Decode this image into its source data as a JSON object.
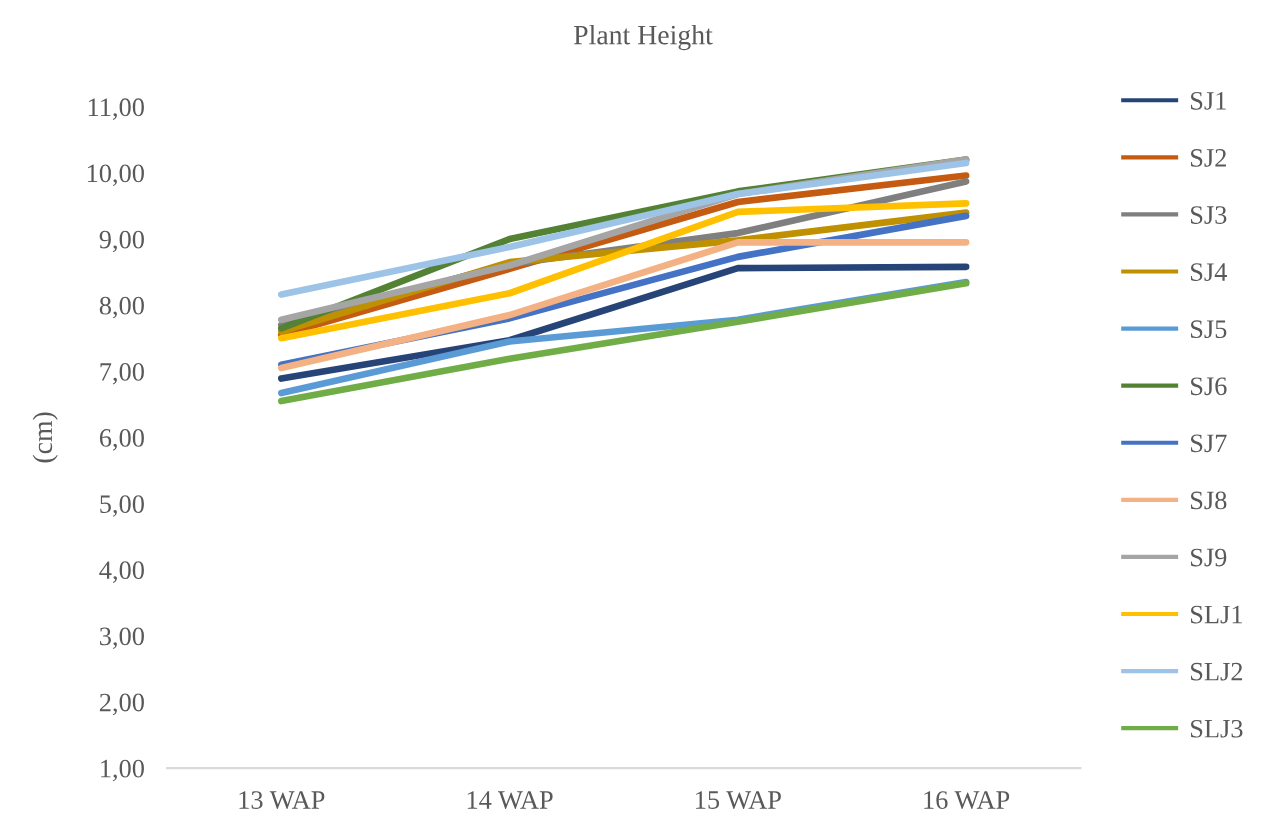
{
  "chart_data": {
    "type": "line",
    "title": "Plant Height",
    "ylabel": "(cm)",
    "categories": [
      "13 WAP",
      "14 WAP",
      "15 WAP",
      "16 WAP"
    ],
    "series": [
      {
        "name": "SJ1",
        "color": "#264478",
        "values": [
          6.89,
          7.47,
          8.56,
          8.58
        ]
      },
      {
        "name": "SJ2",
        "color": "#C55A11",
        "values": [
          7.55,
          8.55,
          9.56,
          9.96
        ]
      },
      {
        "name": "SJ3",
        "color": "#7F7F7F",
        "values": [
          7.7,
          8.62,
          9.09,
          9.87
        ]
      },
      {
        "name": "SJ4",
        "color": "#BF9000",
        "values": [
          7.6,
          8.65,
          8.98,
          9.4
        ]
      },
      {
        "name": "SJ5",
        "color": "#5B9BD5",
        "values": [
          6.67,
          7.45,
          7.78,
          8.35
        ]
      },
      {
        "name": "SJ6",
        "color": "#548235",
        "values": [
          7.65,
          9.0,
          9.72,
          10.2
        ]
      },
      {
        "name": "SJ7",
        "color": "#4472C4",
        "values": [
          7.1,
          7.8,
          8.73,
          9.35
        ]
      },
      {
        "name": "SJ8",
        "color": "#F4B183",
        "values": [
          7.05,
          7.85,
          8.95,
          8.95
        ]
      },
      {
        "name": "SJ9",
        "color": "#A5A5A5",
        "values": [
          7.78,
          8.6,
          9.68,
          10.2
        ]
      },
      {
        "name": "SLJ1",
        "color": "#FFC000",
        "values": [
          7.5,
          8.18,
          9.41,
          9.54
        ]
      },
      {
        "name": "SLJ2",
        "color": "#9DC3E6",
        "values": [
          8.16,
          8.88,
          9.68,
          10.15
        ]
      },
      {
        "name": "SLJ3",
        "color": "#70AD47",
        "values": [
          6.55,
          7.19,
          7.75,
          8.33
        ]
      }
    ],
    "ylim": [
      1,
      11
    ],
    "yticks": [
      {
        "value": 1,
        "label": "1,00"
      },
      {
        "value": 2,
        "label": "2,00"
      },
      {
        "value": 3,
        "label": "3,00"
      },
      {
        "value": 4,
        "label": "4,00"
      },
      {
        "value": 5,
        "label": "5,00"
      },
      {
        "value": 6,
        "label": "6,00"
      },
      {
        "value": 7,
        "label": "7,00"
      },
      {
        "value": 8,
        "label": "8,00"
      },
      {
        "value": 9,
        "label": "9,00"
      },
      {
        "value": 10,
        "label": "10,00"
      },
      {
        "value": 11,
        "label": "11,00"
      }
    ],
    "grid": false,
    "legend": "right",
    "marker": "none",
    "line_style": "solid"
  }
}
